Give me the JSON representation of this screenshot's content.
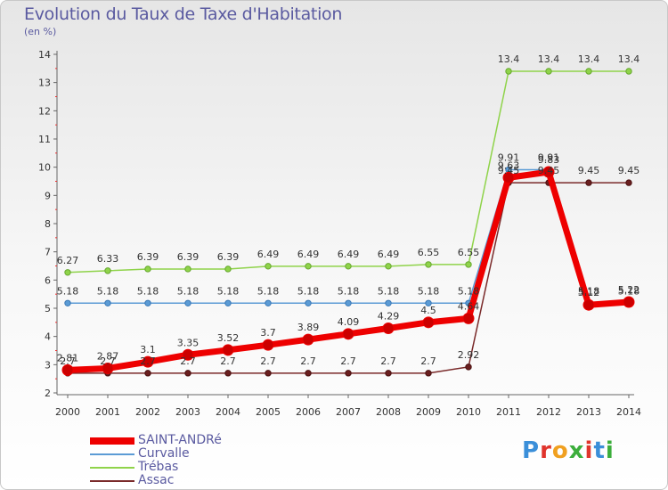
{
  "title": "Evolution du Taux de Taxe d'Habitation",
  "subtitle": "(en %)",
  "logo": {
    "text": "Proxiti",
    "letters": [
      {
        "ch": "P",
        "color": "#3b8fd9"
      },
      {
        "ch": "r",
        "color": "#e0342c"
      },
      {
        "ch": "o",
        "color": "#f0a020"
      },
      {
        "ch": "x",
        "color": "#3cae3c"
      },
      {
        "ch": "i",
        "color": "#e0342c"
      },
      {
        "ch": "t",
        "color": "#3b8fd9"
      },
      {
        "ch": "i",
        "color": "#3cae3c"
      }
    ]
  },
  "chart_data": {
    "type": "line",
    "x": [
      "2000",
      "2001",
      "2002",
      "2003",
      "2004",
      "2005",
      "2006",
      "2007",
      "2008",
      "2009",
      "2010",
      "2011",
      "2012",
      "2013",
      "2014"
    ],
    "ylim": [
      2,
      14
    ],
    "yticks": [
      2,
      3,
      4,
      5,
      6,
      7,
      8,
      9,
      10,
      11,
      12,
      13,
      14
    ],
    "grid": false,
    "legend_position": "bottom-left",
    "series": [
      {
        "name": "SAINT-ANDRé",
        "color": "#ee0000",
        "values": [
          2.81,
          2.87,
          3.1,
          3.35,
          3.52,
          3.7,
          3.89,
          4.09,
          4.29,
          4.5,
          4.64,
          9.63,
          9.83,
          5.12,
          5.22
        ],
        "labels": [
          "2.81",
          "2.87",
          "3.1",
          "3.35",
          "3.52",
          "3.7",
          "3.89",
          "4.09",
          "4.29",
          "4.5",
          "4.64",
          "9.63",
          "9.83",
          "5.12",
          "5.22"
        ]
      },
      {
        "name": "Curvalle",
        "color": "#5b9bd5",
        "values": [
          5.18,
          5.18,
          5.18,
          5.18,
          5.18,
          5.18,
          5.18,
          5.18,
          5.18,
          5.18,
          5.18,
          9.91,
          9.91,
          5.18,
          5.18
        ],
        "labels": [
          "5.18",
          "5.18",
          "5.18",
          "5.18",
          "5.18",
          "5.18",
          "5.18",
          "5.18",
          "5.18",
          "5.18",
          "5.18",
          "9.91",
          "9.91",
          "5.18",
          "5.18"
        ]
      },
      {
        "name": "Trébas",
        "color": "#8fd34a",
        "values": [
          6.27,
          6.33,
          6.39,
          6.39,
          6.39,
          6.49,
          6.49,
          6.49,
          6.49,
          6.55,
          6.55,
          13.4,
          13.4,
          13.4,
          13.4
        ],
        "labels": [
          "6.27",
          "6.33",
          "6.39",
          "6.39",
          "6.39",
          "6.49",
          "6.49",
          "6.49",
          "6.49",
          "6.55",
          "6.55",
          "13.4",
          "13.4",
          "13.4",
          "13.4"
        ]
      },
      {
        "name": "Assac",
        "color": "#7a2a2a",
        "values": [
          2.7,
          2.7,
          2.7,
          2.7,
          2.7,
          2.7,
          2.7,
          2.7,
          2.7,
          2.7,
          2.92,
          9.45,
          9.45,
          9.45,
          9.45
        ],
        "labels": [
          "2.7",
          "2.7",
          "2.7",
          "2.7",
          "2.7",
          "2.7",
          "2.7",
          "2.7",
          "2.7",
          "2.7",
          "2.92",
          "9.45",
          "9.45",
          "9.45",
          "9.45"
        ]
      }
    ]
  }
}
